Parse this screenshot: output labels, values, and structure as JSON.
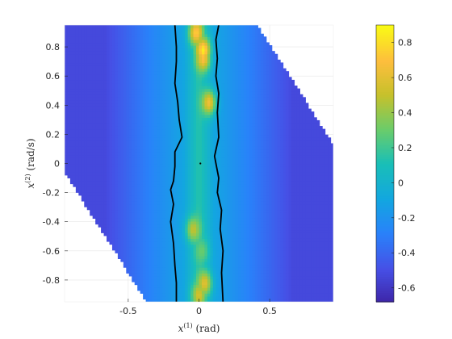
{
  "chart_data": {
    "type": "heatmap",
    "colormap": "parula",
    "xlabel_main": "x",
    "xlabel_sup": "(1)",
    "xlabel_unit": " (rad)",
    "ylabel_main": "x",
    "ylabel_sup": "(2)",
    "ylabel_unit": " (rad/s)",
    "xlim": [
      -0.95,
      0.95
    ],
    "ylim": [
      -0.95,
      0.95
    ],
    "xticks": [
      -0.5,
      0,
      0.5
    ],
    "xtick_labels": [
      "-0.5",
      "0",
      "0.5"
    ],
    "yticks": [
      -0.8,
      -0.6,
      -0.4,
      -0.2,
      0,
      0.2,
      0.4,
      0.6,
      0.8
    ],
    "ytick_labels": [
      "-0.8",
      "-0.6",
      "-0.4",
      "-0.2",
      "0",
      "0.2",
      "0.4",
      "0.6",
      "0.8"
    ],
    "clim": [
      -0.68,
      0.9
    ],
    "cticks": [
      -0.6,
      -0.4,
      -0.2,
      0,
      0.2,
      0.4,
      0.6,
      0.8
    ],
    "ctick_labels": [
      "-0.6",
      "-0.4",
      "-0.2",
      "0",
      "0.2",
      "0.4",
      "0.6",
      "0.8"
    ],
    "grid": true,
    "region_polygon": [
      [
        -0.95,
        0.95
      ],
      [
        0.41,
        0.95
      ],
      [
        0.95,
        0.13
      ],
      [
        0.95,
        -0.95
      ],
      [
        -0.37,
        -0.95
      ],
      [
        -0.95,
        -0.06
      ]
    ],
    "field": {
      "center_values": [
        -0.1,
        0.15
      ],
      "edge_value": -0.52,
      "band_half_width": 0.11,
      "peaks": [
        {
          "x": -0.02,
          "y": 0.9,
          "value": 0.75
        },
        {
          "x": 0.03,
          "y": 0.78,
          "value": 0.85
        },
        {
          "x": 0.03,
          "y": 0.72,
          "value": 0.7
        },
        {
          "x": 0.07,
          "y": 0.42,
          "value": 0.65
        },
        {
          "x": -0.04,
          "y": -0.45,
          "value": 0.5
        },
        {
          "x": 0.02,
          "y": -0.6,
          "value": 0.3
        },
        {
          "x": 0.04,
          "y": -0.82,
          "value": 0.6
        },
        {
          "x": 0.0,
          "y": -0.9,
          "value": 0.55
        }
      ]
    },
    "zero_contours": [
      {
        "name": "left",
        "points": [
          [
            -0.17,
            0.95
          ],
          [
            -0.16,
            0.8
          ],
          [
            -0.16,
            0.7
          ],
          [
            -0.17,
            0.55
          ],
          [
            -0.15,
            0.42
          ],
          [
            -0.14,
            0.3
          ],
          [
            -0.12,
            0.18
          ],
          [
            -0.17,
            0.08
          ],
          [
            -0.17,
            -0.02
          ],
          [
            -0.18,
            -0.12
          ],
          [
            -0.2,
            -0.18
          ],
          [
            -0.18,
            -0.28
          ],
          [
            -0.2,
            -0.4
          ],
          [
            -0.18,
            -0.55
          ],
          [
            -0.17,
            -0.7
          ],
          [
            -0.16,
            -0.82
          ],
          [
            -0.16,
            -0.95
          ]
        ]
      },
      {
        "name": "right",
        "points": [
          [
            0.14,
            0.95
          ],
          [
            0.12,
            0.85
          ],
          [
            0.13,
            0.72
          ],
          [
            0.12,
            0.6
          ],
          [
            0.14,
            0.48
          ],
          [
            0.13,
            0.35
          ],
          [
            0.14,
            0.18
          ],
          [
            0.11,
            0.05
          ],
          [
            0.14,
            -0.1
          ],
          [
            0.13,
            -0.2
          ],
          [
            0.16,
            -0.32
          ],
          [
            0.15,
            -0.45
          ],
          [
            0.17,
            -0.6
          ],
          [
            0.16,
            -0.75
          ],
          [
            0.17,
            -0.95
          ]
        ]
      }
    ],
    "marker": {
      "x": 0.01,
      "y": 0.0
    }
  }
}
